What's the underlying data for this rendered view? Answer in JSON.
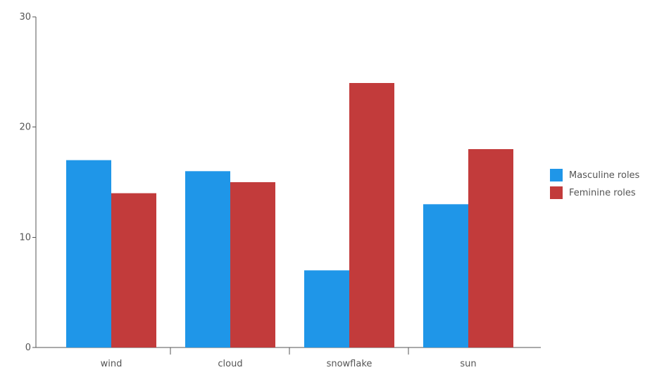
{
  "chart_data": {
    "type": "bar",
    "title": "",
    "xlabel": "",
    "ylabel": "",
    "categories": [
      "wind",
      "cloud",
      "snowflake",
      "sun"
    ],
    "series": [
      {
        "name": "Masculine roles",
        "values": [
          17,
          16,
          7,
          13
        ],
        "color": "#1f96e8"
      },
      {
        "name": "Feminine roles",
        "values": [
          14,
          15,
          24,
          18
        ],
        "color": "#c23b3b"
      }
    ],
    "ylim": [
      0,
      30
    ],
    "yticks": [
      0,
      10,
      20,
      30
    ],
    "grid": false,
    "legend_position": "right"
  }
}
